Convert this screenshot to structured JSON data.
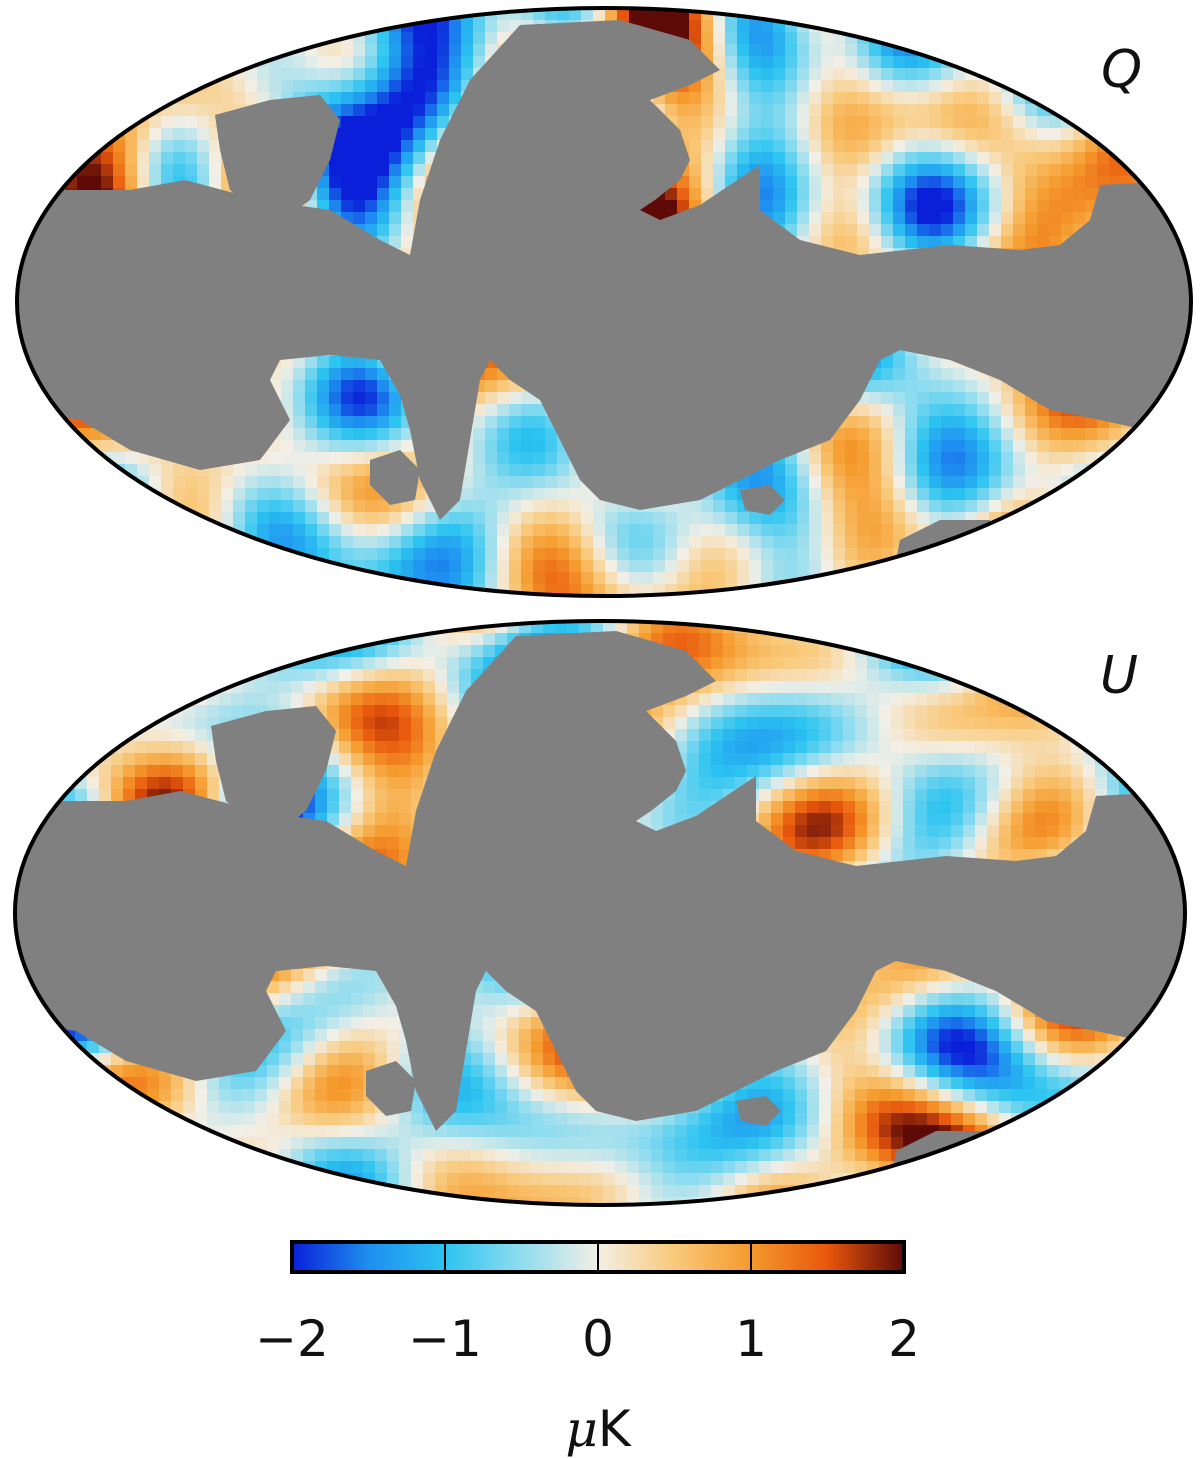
{
  "panels": [
    {
      "label": "Q",
      "name": "map-q",
      "seed": 11
    },
    {
      "label": "U",
      "name": "map-u",
      "seed": 29
    }
  ],
  "colorbar": {
    "min": -2,
    "max": 2,
    "ticks": [
      -2,
      -1,
      0,
      1,
      2
    ],
    "tick_labels": [
      "−2",
      "−1",
      "0",
      "1",
      "2"
    ],
    "unit_symbol": "μ",
    "unit_suffix": "K",
    "colors": [
      "#0a1fd9",
      "#1e8ef0",
      "#2cc4f0",
      "#8fdcef",
      "#f3efe6",
      "#f9c97a",
      "#f59a2c",
      "#e8560c",
      "#5e0b08"
    ]
  },
  "mask_color": "#808080"
}
